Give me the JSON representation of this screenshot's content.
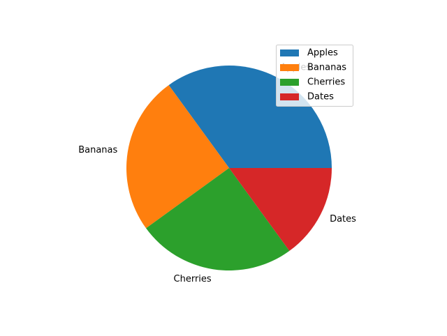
{
  "chart_data": {
    "type": "pie",
    "categories": [
      "Apples",
      "Bananas",
      "Cherries",
      "Dates"
    ],
    "values": [
      35,
      25,
      25,
      15
    ],
    "colors": [
      "#1f77b4",
      "#ff7f0e",
      "#2ca02c",
      "#d62728"
    ],
    "start_angle_deg": 0,
    "direction": "counterclockwise",
    "title": "",
    "legend": {
      "placement": "upper-right",
      "entries": [
        "Apples",
        "Bananas",
        "Cherries",
        "Dates"
      ]
    }
  }
}
